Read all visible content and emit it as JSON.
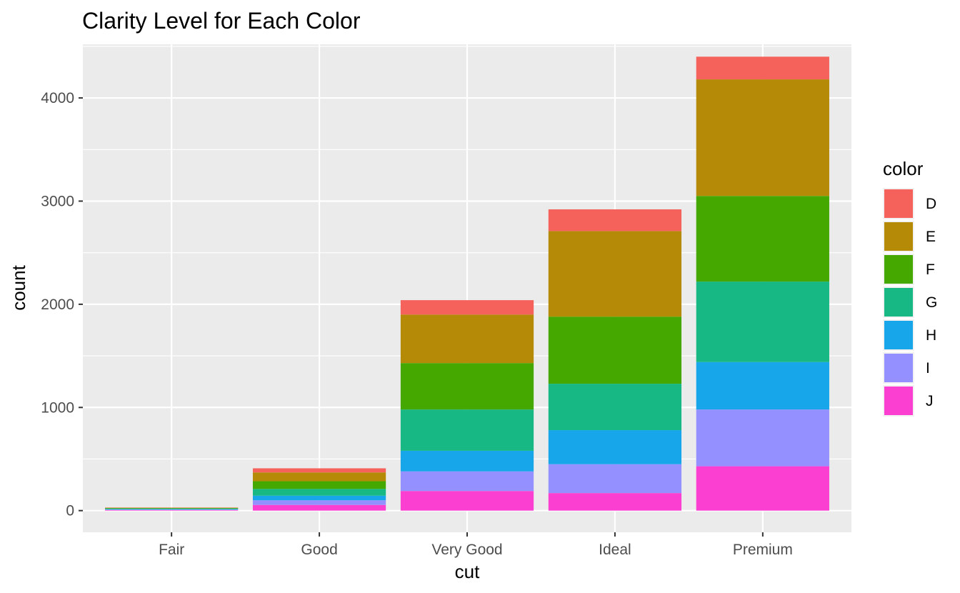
{
  "chart_data": {
    "type": "bar",
    "stacked": true,
    "title": "Clarity Level for Each Color",
    "xlabel": "cut",
    "ylabel": "count",
    "categories": [
      "Fair",
      "Good",
      "Very Good",
      "Ideal",
      "Premium"
    ],
    "ylim": [
      -210,
      4520
    ],
    "yticks": [
      0,
      1000,
      2000,
      3000,
      4000
    ],
    "grid": true,
    "legend": {
      "title": "color",
      "position": "right"
    },
    "series": [
      {
        "name": "J",
        "color": "#FB3FD0",
        "values": [
          6,
          55,
          190,
          170,
          430
        ]
      },
      {
        "name": "I",
        "color": "#9590FF",
        "values": [
          4,
          45,
          190,
          280,
          550
        ]
      },
      {
        "name": "H",
        "color": "#17A6EA",
        "values": [
          5,
          45,
          200,
          330,
          460
        ]
      },
      {
        "name": "G",
        "color": "#18B884",
        "values": [
          5,
          65,
          400,
          450,
          780
        ]
      },
      {
        "name": "F",
        "color": "#45A801",
        "values": [
          5,
          75,
          450,
          650,
          830
        ]
      },
      {
        "name": "E",
        "color": "#B58A06",
        "values": [
          3,
          85,
          470,
          830,
          1130
        ]
      },
      {
        "name": "D",
        "color": "#F5625C",
        "values": [
          2,
          40,
          140,
          210,
          220
        ]
      }
    ]
  }
}
